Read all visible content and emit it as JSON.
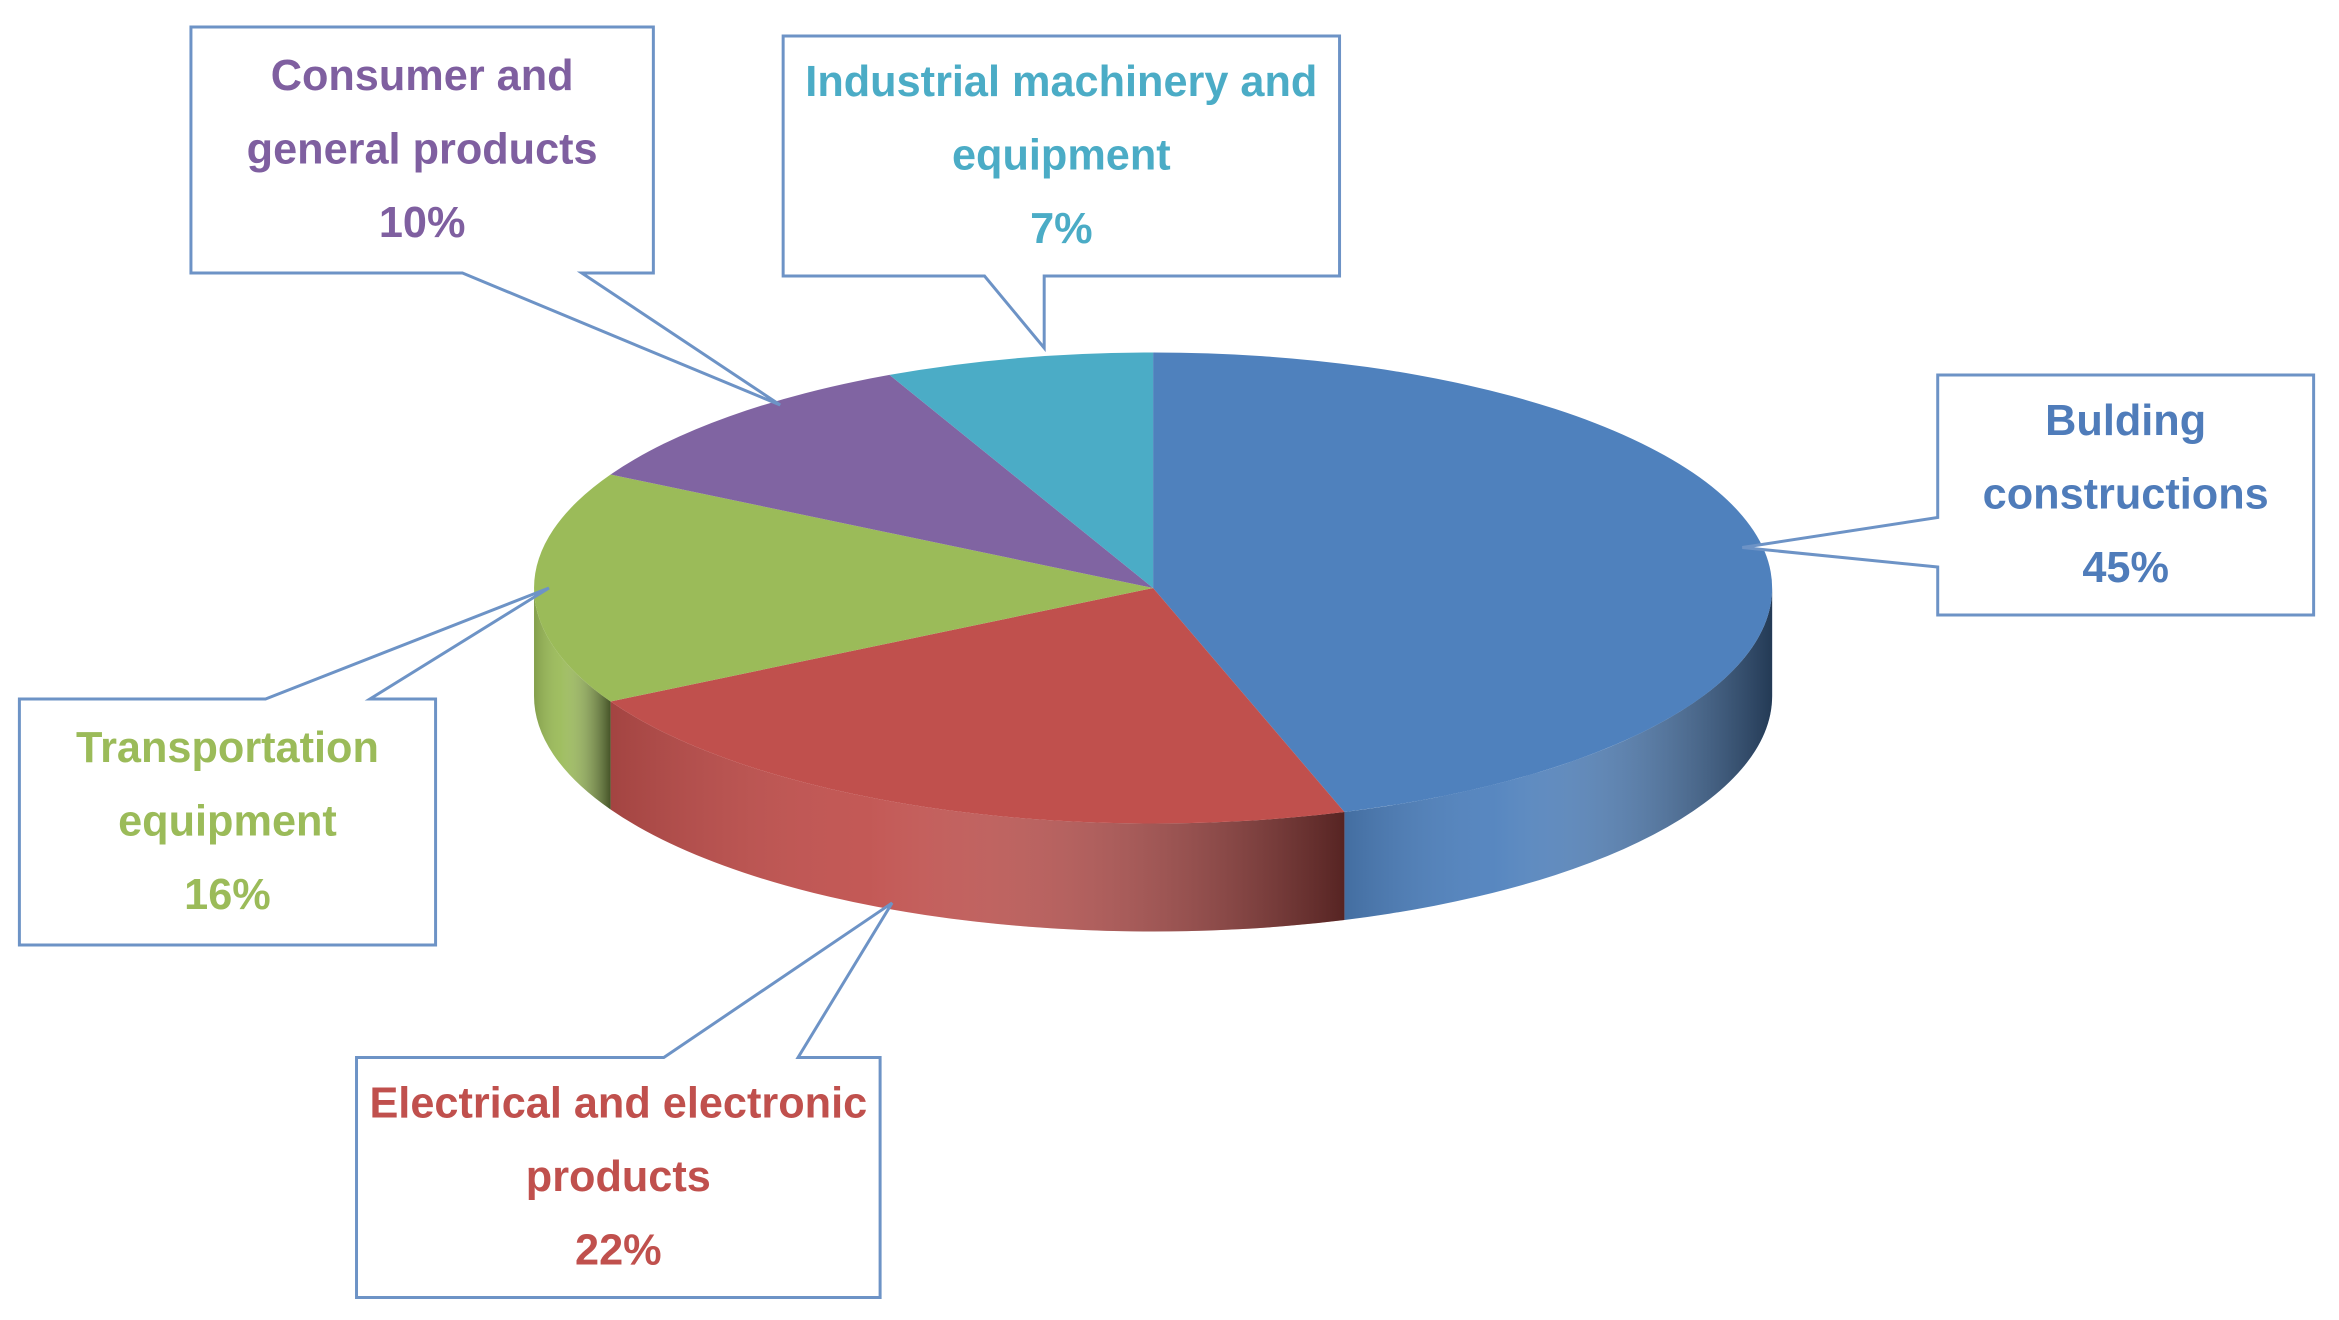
{
  "chart_data": {
    "type": "pie",
    "categories": [
      "Bulding constructions",
      "Electrical and electronic products",
      "Transportation equipment",
      "Consumer and general products",
      "Industrial machinery and equipment"
    ],
    "values": [
      45,
      22,
      16,
      10,
      7
    ],
    "value_labels": [
      "45%",
      "22%",
      "16%",
      "10%",
      "7%"
    ],
    "colors": [
      "#4f81bd",
      "#c0504d",
      "#9bbb59",
      "#8064a2",
      "#4bacc6"
    ],
    "label_colors": [
      "#4f7cba",
      "#c0504d",
      "#9bbb59",
      "#7f5fa0",
      "#4bacc6"
    ]
  }
}
